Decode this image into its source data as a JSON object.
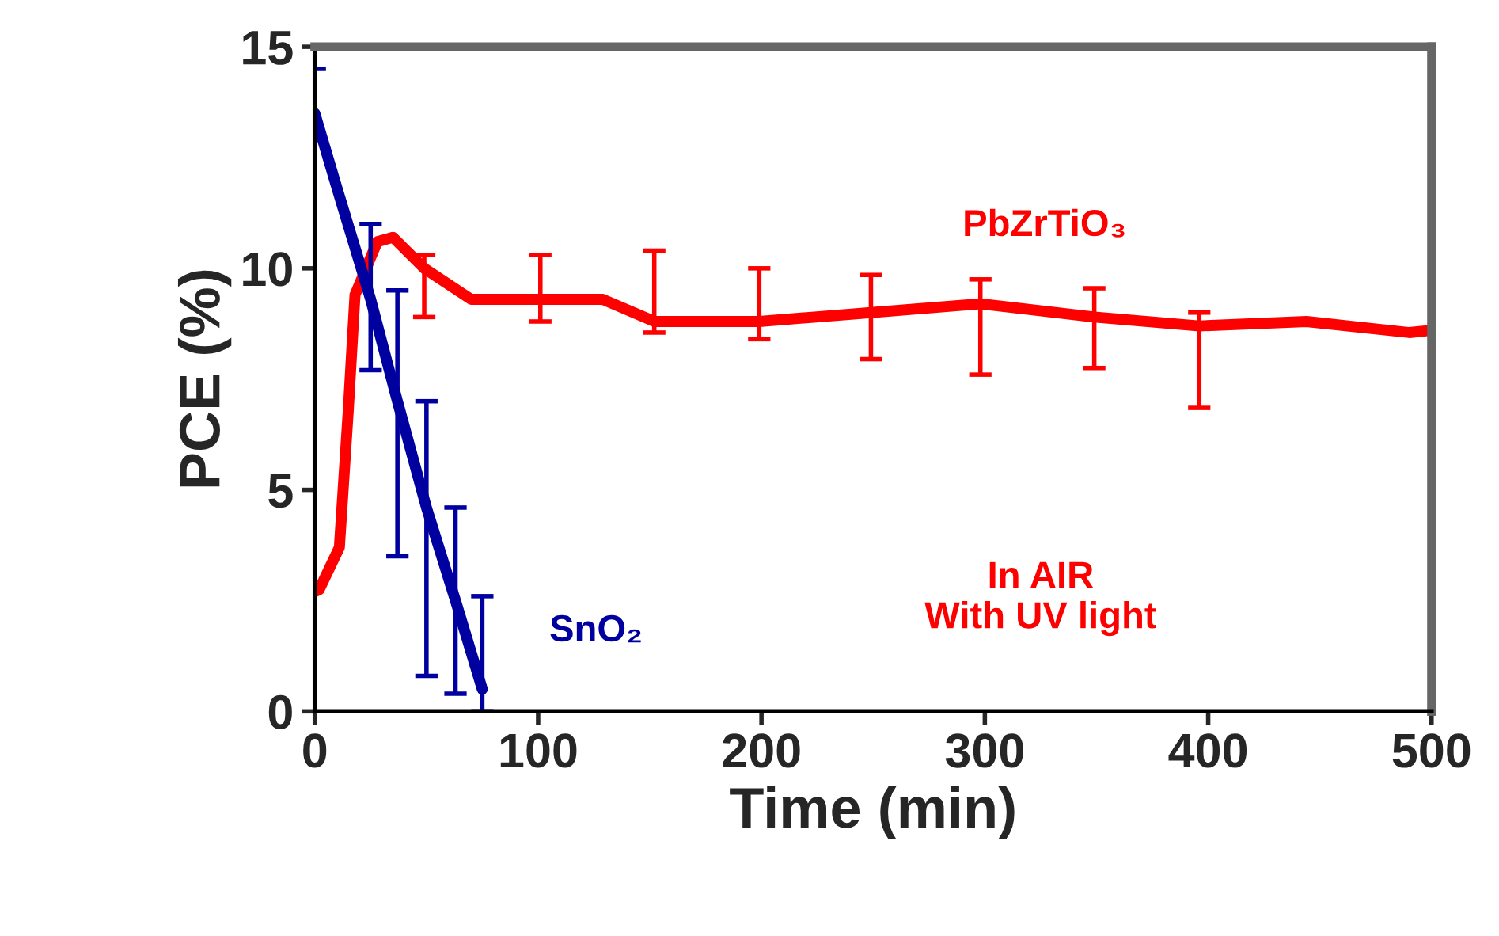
{
  "chart_data": {
    "type": "line",
    "xlabel": "Time (min)",
    "ylabel": "PCE (%)",
    "xlim": [
      0,
      500
    ],
    "xticks": [
      0,
      100,
      200,
      300,
      400,
      500
    ],
    "ylim": [
      0,
      15
    ],
    "yticks": [
      0,
      5,
      10,
      15
    ],
    "grid": false,
    "legend": false,
    "marker": "none",
    "line_style": "solid",
    "series": [
      {
        "name": "PbZrTiO₃",
        "color": "#ff0000",
        "x": [
          0,
          2,
          11,
          15,
          18,
          28,
          35,
          49,
          70,
          101,
          129,
          152,
          199,
          249,
          298,
          349,
          396,
          444,
          490,
          500
        ],
        "values": [
          2.7,
          2.75,
          3.7,
          6.8,
          9.4,
          10.6,
          10.7,
          10.0,
          9.3,
          9.3,
          9.3,
          8.8,
          8.8,
          9.0,
          9.2,
          8.9,
          8.7,
          8.8,
          8.55,
          8.6
        ],
        "errors": [
          null,
          null,
          null,
          null,
          null,
          null,
          null,
          [
            8.9,
            10.3
          ],
          null,
          [
            8.8,
            10.3
          ],
          null,
          [
            8.55,
            10.4
          ],
          [
            8.4,
            10.0
          ],
          [
            7.95,
            9.85
          ],
          [
            7.6,
            9.75
          ],
          [
            7.75,
            9.55
          ],
          [
            6.85,
            9.0
          ],
          null,
          null,
          null
        ]
      },
      {
        "name": "SnO₂",
        "color": "#0000a0",
        "x": [
          0,
          10,
          25,
          37,
          50,
          63,
          75
        ],
        "values": [
          13.5,
          11.8,
          9.3,
          7.0,
          4.6,
          2.5,
          0.5
        ],
        "errors": [
          [
            13.0,
            14.5
          ],
          null,
          [
            7.7,
            11.0
          ],
          [
            3.5,
            9.5
          ],
          [
            0.8,
            7.0
          ],
          [
            0.4,
            4.6
          ],
          [
            0.0,
            2.6
          ]
        ]
      }
    ],
    "annotations": [
      "In AIR\nWith UV light"
    ]
  }
}
